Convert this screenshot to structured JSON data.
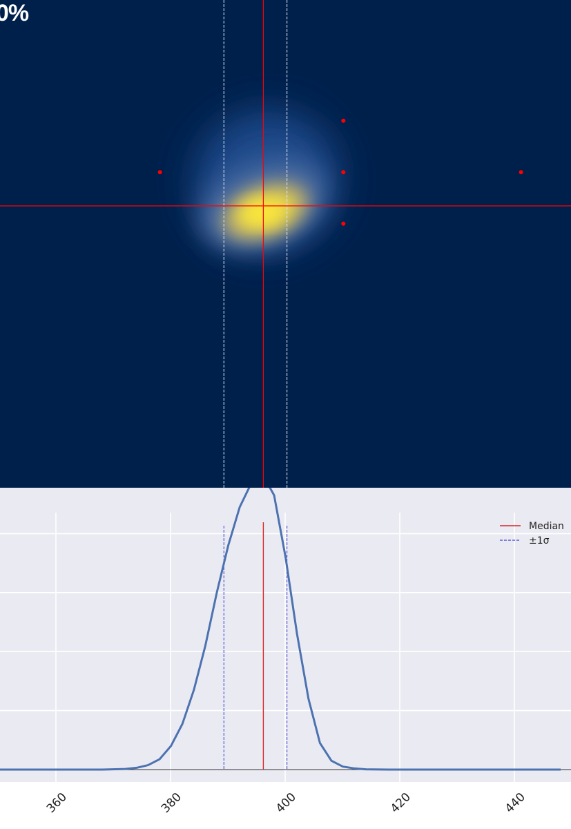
{
  "overlay": {
    "percent_label": "0%"
  },
  "colors": {
    "heatmap_background": "#00204c",
    "plot_background": "#eaeaf2",
    "curve": "#4c72b0",
    "median_line": "#d62728",
    "sigma_line": "#5a5ad6",
    "reference_lines": "#ff0000",
    "grid": "#ffffff"
  },
  "chart_data": [
    {
      "type": "heatmap",
      "colormap": "cividis",
      "peak": {
        "x": 398,
        "y": 395
      },
      "crosshair": {
        "x": 398,
        "y": 395
      },
      "sigma_lines_x": [
        391,
        402
      ],
      "markers": [
        {
          "x": 411,
          "y": 387
        },
        {
          "x": 379,
          "y": 392
        },
        {
          "x": 411,
          "y": 392
        },
        {
          "x": 442,
          "y": 392
        },
        {
          "x": 411,
          "y": 397
        }
      ],
      "xlim": [
        350,
        450
      ]
    },
    {
      "type": "line",
      "title": "",
      "xlabel": "",
      "ylabel": "",
      "xlim": [
        350,
        450
      ],
      "ylim": [
        0,
        1.04
      ],
      "xticks": [
        360,
        380,
        400,
        420,
        440
      ],
      "ygrid": [
        0.2,
        0.4,
        0.6,
        0.8
      ],
      "grid": true,
      "legend_position": "top-right",
      "legend": [
        {
          "label": "Median",
          "style": "solid"
        },
        {
          "label": "±1σ",
          "style": "dashed"
        }
      ],
      "median": 398,
      "sigma_bounds": [
        391,
        402
      ],
      "series": [
        {
          "x": [
            350,
            360,
            370,
            374,
            376,
            378,
            380,
            382,
            384,
            386,
            388,
            390,
            392,
            394,
            396,
            398,
            400,
            402,
            404,
            406,
            408,
            410,
            412,
            414,
            416,
            420,
            430,
            440,
            450
          ],
          "y": [
            0,
            0,
            0,
            0.002,
            0.006,
            0.015,
            0.035,
            0.08,
            0.155,
            0.27,
            0.42,
            0.6,
            0.76,
            0.89,
            0.97,
            1.0,
            0.93,
            0.72,
            0.46,
            0.24,
            0.09,
            0.03,
            0.01,
            0.004,
            0.001,
            0,
            0,
            0,
            0
          ]
        }
      ]
    }
  ]
}
